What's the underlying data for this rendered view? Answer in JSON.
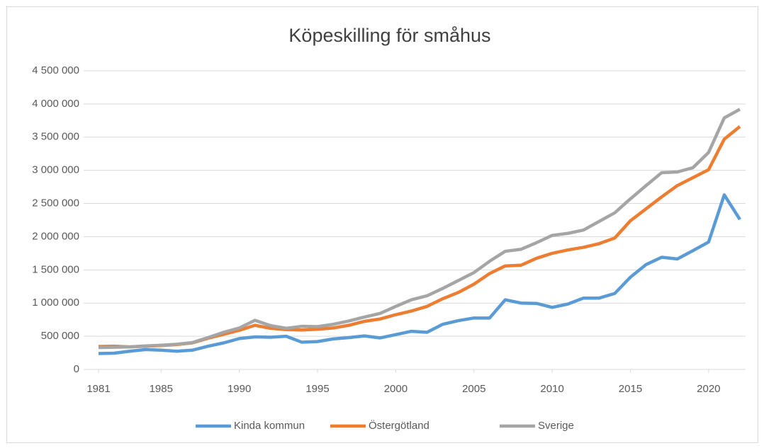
{
  "chart_data": {
    "type": "line",
    "title": "Köpeskilling för småhus",
    "x": [
      1981,
      1982,
      1983,
      1984,
      1985,
      1986,
      1987,
      1988,
      1989,
      1990,
      1991,
      1992,
      1993,
      1994,
      1995,
      1996,
      1997,
      1998,
      1999,
      2000,
      2001,
      2002,
      2003,
      2004,
      2005,
      2006,
      2007,
      2008,
      2009,
      2010,
      2011,
      2012,
      2013,
      2014,
      2015,
      2016,
      2017,
      2018,
      2019,
      2020,
      2021,
      2022
    ],
    "xlim": [
      1981,
      2022
    ],
    "xticks": [
      1981,
      1985,
      1990,
      1995,
      2000,
      2005,
      2010,
      2015,
      2020
    ],
    "ylim": [
      0,
      4500000
    ],
    "yticks": [
      {
        "value": 0,
        "label": "0"
      },
      {
        "value": 500000,
        "label": "500 000"
      },
      {
        "value": 1000000,
        "label": "1 000 000"
      },
      {
        "value": 1500000,
        "label": "1 500 000"
      },
      {
        "value": 2000000,
        "label": "2 000 000"
      },
      {
        "value": 2500000,
        "label": "2 500 000"
      },
      {
        "value": 3000000,
        "label": "3 000 000"
      },
      {
        "value": 3500000,
        "label": "3 500 000"
      },
      {
        "value": 4000000,
        "label": "4 000 000"
      },
      {
        "value": 4500000,
        "label": "4 500 000"
      }
    ],
    "grid": true,
    "legend": "bottom",
    "series": [
      {
        "name": "Kinda kommun",
        "color": "#5b9bd5",
        "values": [
          240000,
          245000,
          275000,
          300000,
          290000,
          275000,
          290000,
          350000,
          400000,
          465000,
          490000,
          485000,
          500000,
          410000,
          420000,
          460000,
          480000,
          505000,
          475000,
          525000,
          575000,
          560000,
          680000,
          735000,
          775000,
          775000,
          1050000,
          1000000,
          995000,
          935000,
          985000,
          1075000,
          1075000,
          1145000,
          1390000,
          1580000,
          1690000,
          1665000,
          1790000,
          1920000,
          2630000,
          2260000
        ]
      },
      {
        "name": "Östergötland",
        "color": "#ed7d31",
        "values": [
          345000,
          350000,
          340000,
          350000,
          360000,
          375000,
          400000,
          470000,
          530000,
          590000,
          665000,
          620000,
          600000,
          595000,
          605000,
          625000,
          665000,
          725000,
          760000,
          825000,
          880000,
          950000,
          1065000,
          1160000,
          1285000,
          1445000,
          1560000,
          1570000,
          1675000,
          1750000,
          1800000,
          1840000,
          1895000,
          1980000,
          2240000,
          2420000,
          2600000,
          2770000,
          2890000,
          3010000,
          3470000,
          3660000
        ]
      },
      {
        "name": "Sverige",
        "color": "#a5a5a5",
        "values": [
          330000,
          335000,
          340000,
          355000,
          365000,
          380000,
          405000,
          480000,
          560000,
          625000,
          740000,
          660000,
          620000,
          650000,
          645000,
          680000,
          730000,
          790000,
          845000,
          950000,
          1050000,
          1110000,
          1220000,
          1340000,
          1460000,
          1630000,
          1780000,
          1810000,
          1910000,
          2020000,
          2050000,
          2100000,
          2230000,
          2360000,
          2570000,
          2770000,
          2965000,
          2975000,
          3040000,
          3270000,
          3790000,
          3920000
        ]
      }
    ]
  }
}
